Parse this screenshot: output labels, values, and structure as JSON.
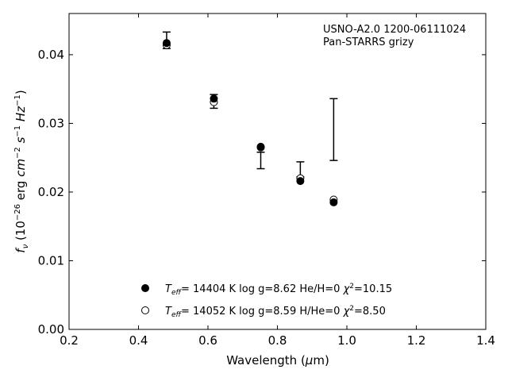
{
  "chart_data": {
    "type": "scatter",
    "xlabel": "Wavelength (μm)",
    "ylabel": "fν (10⁻²⁶ erg cm⁻² s⁻¹ Hz⁻¹)",
    "xlim": [
      0.2,
      1.4
    ],
    "ylim": [
      0.0,
      0.046
    ],
    "x_ticks": [
      "0.2",
      "0.4",
      "0.6",
      "0.8",
      "1.0",
      "1.2",
      "1.4"
    ],
    "y_ticks": [
      "0.00",
      "0.01",
      "0.02",
      "0.03",
      "0.04"
    ],
    "annotations": [
      "USNO-A2.0 1200-06111024",
      "Pan-STARRS grizy"
    ],
    "observed": {
      "x": [
        0.481,
        0.617,
        0.752,
        0.866,
        0.962
      ],
      "y": [
        0.0421,
        0.0332,
        0.0246,
        0.0233,
        0.0291
      ],
      "err": [
        0.0012,
        0.001,
        0.0012,
        0.0011,
        0.0045
      ]
    },
    "series": [
      {
        "name": "Teff= 14404 K  log g=8.62  He/H=0  χ²=10.15",
        "marker": "filled-circle",
        "x": [
          0.481,
          0.617,
          0.752,
          0.866,
          0.962
        ],
        "y": [
          0.0417,
          0.0336,
          0.0266,
          0.0216,
          0.0185
        ]
      },
      {
        "name": "Teff= 14052 K  log g=8.59  H/He=0  χ²=8.50",
        "marker": "open-circle",
        "x": [
          0.481,
          0.617,
          0.752,
          0.866,
          0.962
        ],
        "y": [
          0.0414,
          0.0331,
          0.0265,
          0.022,
          0.0189
        ]
      }
    ],
    "legend": {
      "placement": "lower-center",
      "entries": [
        {
          "teff": "= 14404 K  log g=8.62  He/H=0",
          "chi": "=10.15"
        },
        {
          "teff": "= 14052 K  log g=8.59  H/He=0",
          "chi": "=8.50"
        }
      ]
    },
    "grid": false
  }
}
